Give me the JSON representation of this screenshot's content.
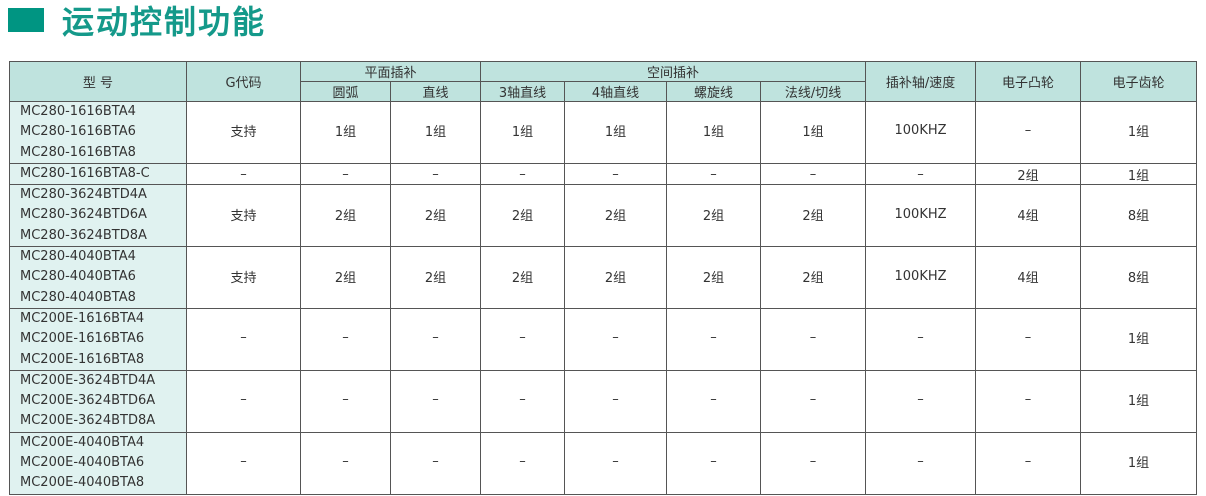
{
  "title": "运动控制功能",
  "colors": {
    "accent": "#009582",
    "header_bg": "#bfe3de",
    "model_bg": "#e0f2f0"
  },
  "header": {
    "model": "型  号",
    "gcode": "G代码",
    "plane": "平面插补",
    "space": "空间插补",
    "speed": "插补轴/速度",
    "cam": "电子凸轮",
    "gear": "电子齿轮",
    "sub": [
      "圆弧",
      "直线",
      "3轴直线",
      "4轴直线",
      "螺旋线",
      "法线/切线"
    ]
  },
  "rows": [
    {
      "models": [
        "MC280-1616BTA4",
        "MC280-1616BTA6",
        "MC280-1616BTA8"
      ],
      "values": [
        "支持",
        "1组",
        "1组",
        "1组",
        "1组",
        "1组",
        "1组",
        "100KHZ",
        "–",
        "1组"
      ]
    },
    {
      "models": [
        "MC280-1616BTA8-C"
      ],
      "values": [
        "–",
        "–",
        "–",
        "–",
        "–",
        "–",
        "–",
        "–",
        "2组",
        "1组"
      ]
    },
    {
      "models": [
        "MC280-3624BTD4A",
        "MC280-3624BTD6A",
        "MC280-3624BTD8A"
      ],
      "values": [
        "支持",
        "2组",
        "2组",
        "2组",
        "2组",
        "2组",
        "2组",
        "100KHZ",
        "4组",
        "8组"
      ]
    },
    {
      "models": [
        "MC280-4040BTA4",
        "MC280-4040BTA6",
        "MC280-4040BTA8"
      ],
      "values": [
        "支持",
        "2组",
        "2组",
        "2组",
        "2组",
        "2组",
        "2组",
        "100KHZ",
        "4组",
        "8组"
      ]
    },
    {
      "models": [
        "MC200E-1616BTA4",
        "MC200E-1616BTA6",
        "MC200E-1616BTA8"
      ],
      "values": [
        "–",
        "–",
        "–",
        "–",
        "–",
        "–",
        "–",
        "–",
        "–",
        "1组"
      ]
    },
    {
      "models": [
        "MC200E-3624BTD4A",
        "MC200E-3624BTD6A",
        "MC200E-3624BTD8A"
      ],
      "values": [
        "–",
        "–",
        "–",
        "–",
        "–",
        "–",
        "–",
        "–",
        "–",
        "1组"
      ]
    },
    {
      "models": [
        "MC200E-4040BTA4",
        "MC200E-4040BTA6",
        "MC200E-4040BTA8"
      ],
      "values": [
        "–",
        "–",
        "–",
        "–",
        "–",
        "–",
        "–",
        "–",
        "–",
        "1组"
      ]
    }
  ]
}
